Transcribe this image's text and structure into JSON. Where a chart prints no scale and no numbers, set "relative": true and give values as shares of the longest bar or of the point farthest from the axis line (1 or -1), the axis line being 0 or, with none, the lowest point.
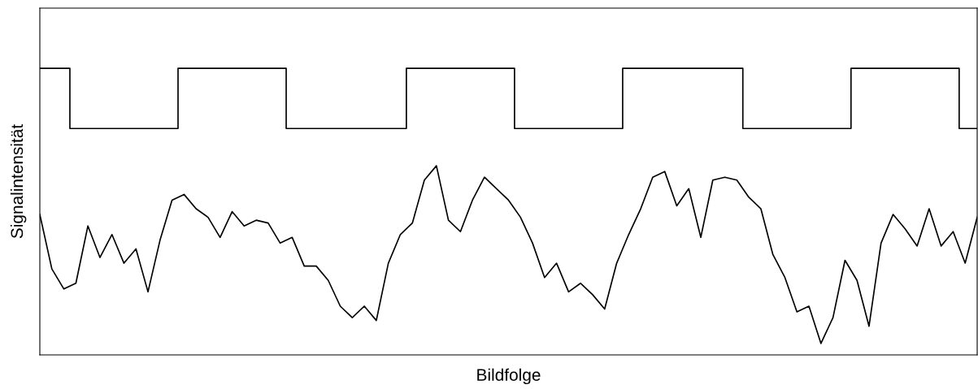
{
  "chart_data": {
    "type": "line",
    "xlabel": "Bildfolge",
    "ylabel": "Signalintensität",
    "relative": true,
    "tick_labels": false,
    "categories": [
      null,
      null,
      null,
      null,
      null,
      null,
      null,
      null,
      null,
      null,
      null,
      null,
      null,
      null,
      null,
      null,
      null,
      null,
      null,
      null,
      null,
      null,
      null,
      null,
      null,
      null,
      null,
      null,
      null,
      null,
      null,
      null,
      null,
      null,
      null,
      null,
      null,
      null,
      null,
      null,
      null,
      null,
      null,
      null,
      null,
      null,
      null,
      null,
      null,
      null,
      null,
      null,
      null,
      null,
      null,
      null,
      null,
      null,
      null,
      null,
      null,
      null,
      null,
      null,
      null,
      null,
      null,
      null,
      null,
      null,
      null,
      null,
      null,
      null,
      null,
      null,
      null,
      null,
      null
    ],
    "series": [
      {
        "type": "step",
        "color": "#000000",
        "values": [
          1,
          1,
          1,
          0.79,
          0.79,
          0.79,
          0.79,
          0.79,
          0.79,
          0.79,
          0.79,
          0.79,
          1,
          1,
          1,
          1,
          1,
          1,
          1,
          1,
          1,
          0.79,
          0.79,
          0.79,
          0.79,
          0.79,
          0.79,
          0.79,
          0.79,
          0.79,
          0.79,
          1,
          1,
          1,
          1,
          1,
          1,
          1,
          1,
          1,
          0.79,
          0.79,
          0.79,
          0.79,
          0.79,
          0.79,
          0.79,
          0.79,
          0.79,
          1,
          1,
          1,
          1,
          1,
          1,
          1,
          1,
          1,
          1,
          0.79,
          0.79,
          0.79,
          0.79,
          0.79,
          0.79,
          0.79,
          0.79,
          0.79,
          1,
          1,
          1,
          1,
          1,
          1,
          1,
          1,
          1,
          0.79,
          0.79
        ]
      },
      {
        "color": "#000000",
        "values": [
          0.49,
          0.3,
          0.23,
          0.25,
          0.45,
          0.34,
          0.42,
          0.32,
          0.37,
          0.22,
          0.4,
          0.54,
          0.56,
          0.51,
          0.48,
          0.41,
          0.5,
          0.45,
          0.47,
          0.46,
          0.39,
          0.41,
          0.31,
          0.31,
          0.26,
          0.17,
          0.13,
          0.17,
          0.12,
          0.32,
          0.42,
          0.46,
          0.61,
          0.66,
          0.47,
          0.43,
          0.54,
          0.62,
          0.58,
          0.54,
          0.48,
          0.39,
          0.27,
          0.32,
          0.22,
          0.25,
          0.21,
          0.16,
          0.32,
          0.42,
          0.51,
          0.62,
          0.64,
          0.52,
          0.58,
          0.41,
          0.61,
          0.62,
          0.61,
          0.55,
          0.51,
          0.35,
          0.27,
          0.15,
          0.17,
          0.04,
          0.13,
          0.33,
          0.26,
          0.1,
          0.39,
          0.49,
          0.44,
          0.38,
          0.51,
          0.38,
          0.43,
          0.32,
          0.48
        ]
      }
    ]
  }
}
